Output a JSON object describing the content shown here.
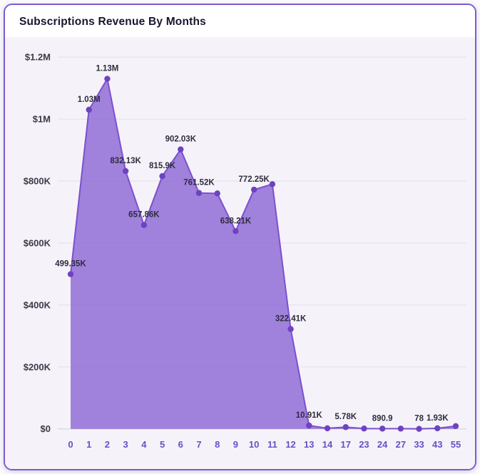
{
  "card": {
    "title": "Subscriptions Revenue By Months"
  },
  "theme": {
    "card_border": "#7d5ad3",
    "card_bg": "#ffffff",
    "chart_bg": "#f5f3f9",
    "area_fill": "#8d68d6",
    "area_opacity": 0.82,
    "line_color": "#7c50cf",
    "dot_color": "#6e42c1",
    "grid_color": "#e3deec",
    "axis_color": "#d5cfe0",
    "point_label_color": "#2e2c3e",
    "x_tick_color": "#6b4ec5",
    "y_tick_color": "#3c3a49"
  },
  "chart_data": {
    "type": "area",
    "title": "Subscriptions Revenue By Months",
    "xlabel": "",
    "ylabel": "",
    "categories": [
      "0",
      "1",
      "2",
      "3",
      "4",
      "5",
      "6",
      "7",
      "8",
      "9",
      "10",
      "11",
      "12",
      "13",
      "14",
      "17",
      "23",
      "24",
      "27",
      "33",
      "43",
      "55"
    ],
    "values": [
      499350,
      1030000,
      1130000,
      832130,
      657860,
      815900,
      902030,
      761520,
      760000,
      638210,
      772250,
      790000,
      322410,
      10910,
      2000,
      5780,
      1200,
      890.9,
      900,
      78,
      1930,
      9000
    ],
    "point_labels": [
      "499.35K",
      "1.03M",
      "1.13M",
      "832.13K",
      "657.86K",
      "815.9K",
      "902.03K",
      "761.52K",
      "",
      "638.21K",
      "772.25K",
      "",
      "322.41K",
      "10.91K",
      "",
      "5.78K",
      "",
      "890.9",
      "",
      "78",
      "1.93K",
      ""
    ],
    "ylim": [
      0,
      1200000
    ],
    "y_ticks": [
      0,
      200000,
      400000,
      600000,
      800000,
      1000000,
      1200000
    ],
    "y_tick_labels": [
      "$0",
      "$200K",
      "$400K",
      "$600K",
      "$800K",
      "$1M",
      "$1.2M"
    ],
    "grid": true,
    "legend": false
  }
}
